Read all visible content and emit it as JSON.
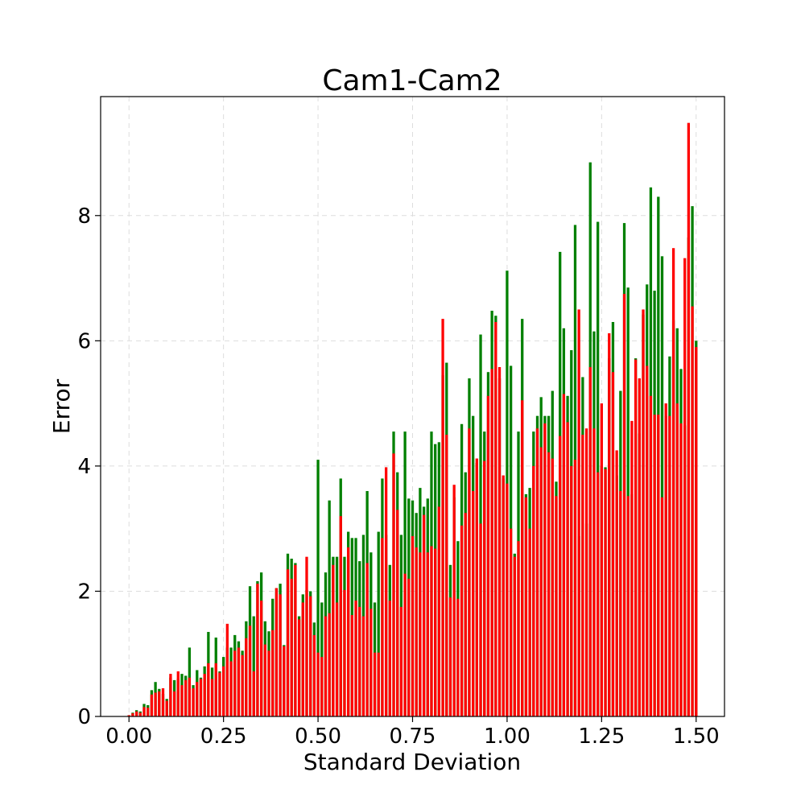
{
  "chart_data": {
    "type": "bar",
    "title": "Cam1-Cam2",
    "xlabel": "Standard Deviation",
    "ylabel": "Error",
    "xlim": [
      -0.075,
      1.575
    ],
    "ylim": [
      0,
      9.9
    ],
    "grid": true,
    "x_ticks": [
      0.0,
      0.25,
      0.5,
      0.75,
      1.0,
      1.25,
      1.5
    ],
    "x_tick_labels": [
      "0.00",
      "0.25",
      "0.50",
      "0.75",
      "1.00",
      "1.25",
      "1.50"
    ],
    "y_ticks": [
      0,
      2,
      4,
      6,
      8
    ],
    "y_tick_labels": [
      "0",
      "2",
      "4",
      "6",
      "8"
    ],
    "bar_width": 0.007,
    "x_start": 0.0,
    "x_step": 0.01,
    "series": [
      {
        "color": "#008000",
        "values": [
          0.02,
          0.06,
          0.1,
          0.08,
          0.2,
          0.18,
          0.42,
          0.55,
          0.44,
          0.36,
          0.28,
          0.62,
          0.58,
          0.6,
          0.68,
          0.65,
          1.1,
          0.5,
          0.74,
          0.62,
          0.8,
          1.35,
          0.78,
          1.26,
          0.72,
          0.95,
          1.1,
          1.1,
          1.3,
          1.2,
          1.05,
          1.52,
          2.08,
          1.6,
          2.16,
          2.3,
          1.52,
          1.36,
          1.88,
          2.05,
          2.12,
          1.14,
          2.6,
          2.52,
          2.45,
          1.6,
          1.95,
          2.02,
          2.0,
          1.5,
          4.1,
          1.82,
          2.3,
          3.45,
          2.55,
          2.55,
          3.8,
          2.55,
          2.95,
          2.85,
          2.85,
          2.48,
          2.9,
          3.6,
          2.62,
          1.82,
          2.95,
          3.8,
          2.9,
          2.42,
          4.55,
          3.9,
          2.9,
          4.55,
          3.48,
          3.45,
          3.25,
          3.65,
          3.35,
          3.48,
          4.55,
          4.35,
          4.38,
          5.45,
          5.65,
          2.42,
          3.5,
          2.8,
          4.67,
          3.9,
          5.4,
          4.8,
          4.05,
          6.1,
          4.55,
          5.5,
          6.48,
          6.4,
          5.4,
          3.8,
          7.12,
          5.6,
          2.6,
          4.55,
          6.35,
          3.55,
          3.65,
          4.55,
          4.8,
          5.1,
          4.8,
          4.8,
          5.2,
          3.75,
          7.42,
          6.2,
          5.12,
          5.85,
          7.85,
          2.88,
          5.42,
          3.08,
          8.85,
          6.15,
          7.9,
          4.0,
          3.98,
          5.72,
          6.3,
          3.85,
          5.2,
          7.88,
          6.85,
          3.55,
          5.72,
          4.52,
          6.42,
          6.9,
          8.45,
          6.8,
          8.3,
          7.35,
          4.8,
          5.75,
          6.33,
          6.2,
          5.55,
          4.65,
          7.65,
          8.15,
          6.0
        ]
      },
      {
        "color": "#ff0000",
        "values": [
          0.02,
          0.05,
          0.08,
          0.06,
          0.15,
          0.14,
          0.35,
          0.38,
          0.4,
          0.45,
          0.25,
          0.68,
          0.4,
          0.72,
          0.5,
          0.58,
          0.62,
          0.45,
          0.55,
          0.6,
          0.68,
          0.85,
          0.6,
          0.85,
          0.7,
          0.8,
          1.48,
          0.88,
          1.05,
          1.1,
          0.98,
          1.25,
          1.45,
          0.72,
          2.12,
          1.85,
          1.15,
          1.05,
          1.38,
          2.05,
          1.95,
          1.12,
          2.35,
          2.2,
          2.42,
          1.55,
          1.82,
          2.55,
          1.92,
          1.3,
          1.02,
          0.95,
          1.6,
          1.65,
          2.42,
          1.82,
          3.2,
          2.02,
          2.7,
          1.62,
          1.85,
          1.75,
          1.6,
          2.45,
          1.72,
          1.02,
          1.02,
          2.85,
          3.98,
          1.85,
          4.2,
          3.3,
          1.75,
          2.28,
          2.2,
          2.88,
          2.7,
          2.62,
          3.22,
          2.62,
          2.72,
          2.68,
          3.35,
          6.35,
          4.5,
          1.9,
          3.7,
          1.88,
          3.05,
          3.25,
          4.6,
          3.6,
          4.12,
          3.08,
          4.08,
          5.12,
          5.55,
          6.3,
          5.58,
          3.85,
          3.72,
          3.0,
          2.55,
          2.8,
          5.05,
          3.5,
          3.0,
          4.0,
          4.6,
          4.3,
          4.68,
          4.22,
          4.12,
          3.52,
          4.48,
          5.15,
          4.7,
          4.0,
          4.1,
          6.5,
          4.5,
          4.6,
          5.58,
          4.6,
          3.9,
          5.0,
          3.95,
          6.12,
          5.5,
          4.25,
          3.6,
          6.75,
          3.52,
          4.72,
          5.7,
          5.4,
          6.5,
          5.6,
          5.12,
          4.82,
          4.82,
          3.5,
          5.0,
          4.8,
          7.48,
          5.0,
          4.68,
          7.32,
          9.48,
          6.55,
          5.9
        ]
      }
    ]
  }
}
